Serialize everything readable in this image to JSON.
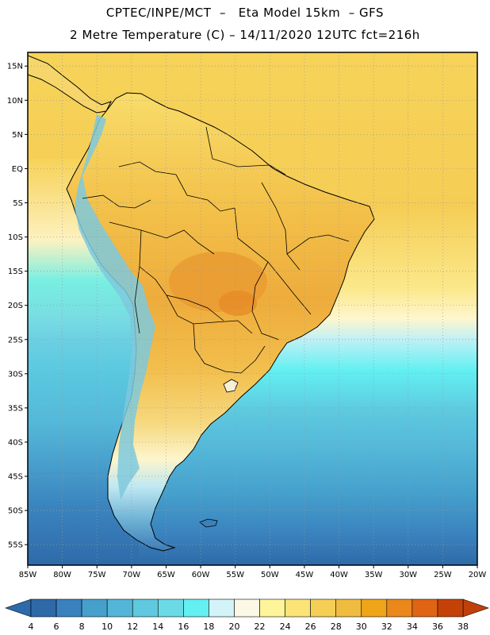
{
  "header": {
    "title_line1": "CPTEC/INPE/MCT  –   Eta Model 15km  – GFS",
    "title_line2": "2 Metre Temperature (C) – 14/11/2020 12UTC fct=216h"
  },
  "map": {
    "lat_labels": [
      "15N",
      "10N",
      "5N",
      "EQ",
      "5S",
      "10S",
      "15S",
      "20S",
      "25S",
      "30S",
      "35S",
      "40S",
      "45S",
      "50S",
      "55S"
    ],
    "lon_labels": [
      "85W",
      "80W",
      "75W",
      "70W",
      "65W",
      "60W",
      "55W",
      "50W",
      "45W",
      "40W",
      "35W",
      "30W",
      "25W",
      "20W"
    ],
    "lon_range": [
      -85,
      -20
    ],
    "lat_range": [
      -58,
      17
    ],
    "gridlines": "dotted",
    "colors": {
      "ocean_north": "#f5cf55",
      "land_warm": "#f3b945",
      "land_hot": "#eda63a",
      "andes_cool": "#7ec9dd",
      "coast": "#000000",
      "border": "#000000"
    }
  },
  "colorbar": {
    "unit": "C",
    "labels": [
      "4",
      "6",
      "8",
      "10",
      "12",
      "14",
      "16",
      "18",
      "20",
      "22",
      "24",
      "26",
      "28",
      "30",
      "32",
      "34",
      "36",
      "38"
    ],
    "colors": [
      "#2e6aa8",
      "#3a82be",
      "#45a0cc",
      "#53b6d8",
      "#5ec9df",
      "#6adbe6",
      "#62f0f2",
      "#d2f4f8",
      "#fcf8e6",
      "#fef59a",
      "#fbe475",
      "#f5cf55",
      "#f0bc3f",
      "#f0a418",
      "#ea881c",
      "#e06413",
      "#c44208"
    ],
    "low_arrow_color": "#2c6aab",
    "high_arrow_color": "#c0400c"
  }
}
